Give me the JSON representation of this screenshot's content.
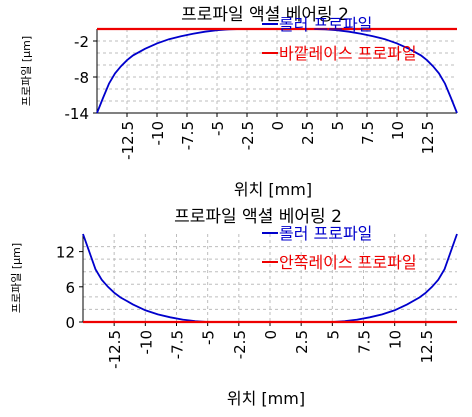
{
  "chart_data": [
    {
      "type": "line",
      "title": "프로파일 액셜 베어링 2",
      "xlabel": "위치 [mm]",
      "ylabel": "프로파일 [μm]",
      "xlim": [
        -15,
        15
      ],
      "ylim": [
        -14,
        0
      ],
      "xticks": [
        "-12.5",
        "-10",
        "-7.5",
        "-5",
        "-2.5",
        "0",
        "2.5",
        "5",
        "7.5",
        "10",
        "12.5"
      ],
      "yticks": [
        "-2",
        "-8",
        "-14"
      ],
      "grid": true,
      "legend": "top-right",
      "series": [
        {
          "name": "롤러 프로파일",
          "color": "#0000cc",
          "x": [
            -15,
            -14.5,
            -14,
            -13.5,
            -13,
            -12.5,
            -12,
            -11,
            -10,
            -9,
            -8,
            -7,
            -6,
            -5,
            -4,
            -3,
            -2,
            -1,
            0,
            1,
            2,
            3,
            4,
            5,
            6,
            7,
            8,
            9,
            10,
            11,
            12,
            12.5,
            13,
            13.5,
            14,
            14.5,
            15
          ],
          "y": [
            -14,
            -11.5,
            -9.1,
            -7.4,
            -6.2,
            -5.2,
            -4.4,
            -3.3,
            -2.4,
            -1.7,
            -1.2,
            -0.8,
            -0.45,
            -0.2,
            -0.06,
            0,
            0,
            0,
            0,
            0,
            0,
            0,
            -0.06,
            -0.2,
            -0.45,
            -0.8,
            -1.2,
            -1.7,
            -2.4,
            -3.3,
            -4.4,
            -5.2,
            -6.2,
            -7.4,
            -9.1,
            -11.5,
            -14
          ]
        },
        {
          "name": "바깥레이스 프로파일",
          "color": "#ee0000",
          "x": [
            -15,
            15
          ],
          "y": [
            0,
            0
          ]
        }
      ]
    },
    {
      "type": "line",
      "title": "프로파일 액셜 베어링 2",
      "xlabel": "위치 [mm]",
      "ylabel": "프로파일 [μm]",
      "xlim": [
        -15,
        15
      ],
      "ylim": [
        0,
        15
      ],
      "xticks": [
        "-12.5",
        "-10",
        "-7.5",
        "-5",
        "-2.5",
        "0",
        "2.5",
        "5",
        "7.5",
        "10",
        "12.5"
      ],
      "yticks": [
        "12",
        "6",
        "0"
      ],
      "grid": true,
      "legend": "top-right",
      "series": [
        {
          "name": "롤러 프로파일",
          "color": "#0000cc",
          "x": [
            -15,
            -14.5,
            -14,
            -13.5,
            -13,
            -12.5,
            -12,
            -11,
            -10,
            -9,
            -8,
            -7,
            -6,
            -5,
            -4,
            -3,
            -2,
            -1,
            0,
            1,
            2,
            3,
            4,
            5,
            6,
            7,
            8,
            9,
            10,
            11,
            12,
            12.5,
            13,
            13.5,
            14,
            14.5,
            15
          ],
          "y": [
            15,
            12,
            9,
            7.2,
            6,
            5,
            4.2,
            3,
            2,
            1.3,
            0.8,
            0.4,
            0.15,
            0,
            0,
            0,
            0,
            0,
            0,
            0,
            0,
            0,
            0,
            0,
            0.15,
            0.4,
            0.8,
            1.3,
            2,
            3,
            4.2,
            5,
            6,
            7.2,
            9,
            12,
            15
          ]
        },
        {
          "name": "안쪽레이스 프로파일",
          "color": "#ee0000",
          "x": [
            -15,
            15
          ],
          "y": [
            0,
            0
          ]
        }
      ]
    }
  ]
}
